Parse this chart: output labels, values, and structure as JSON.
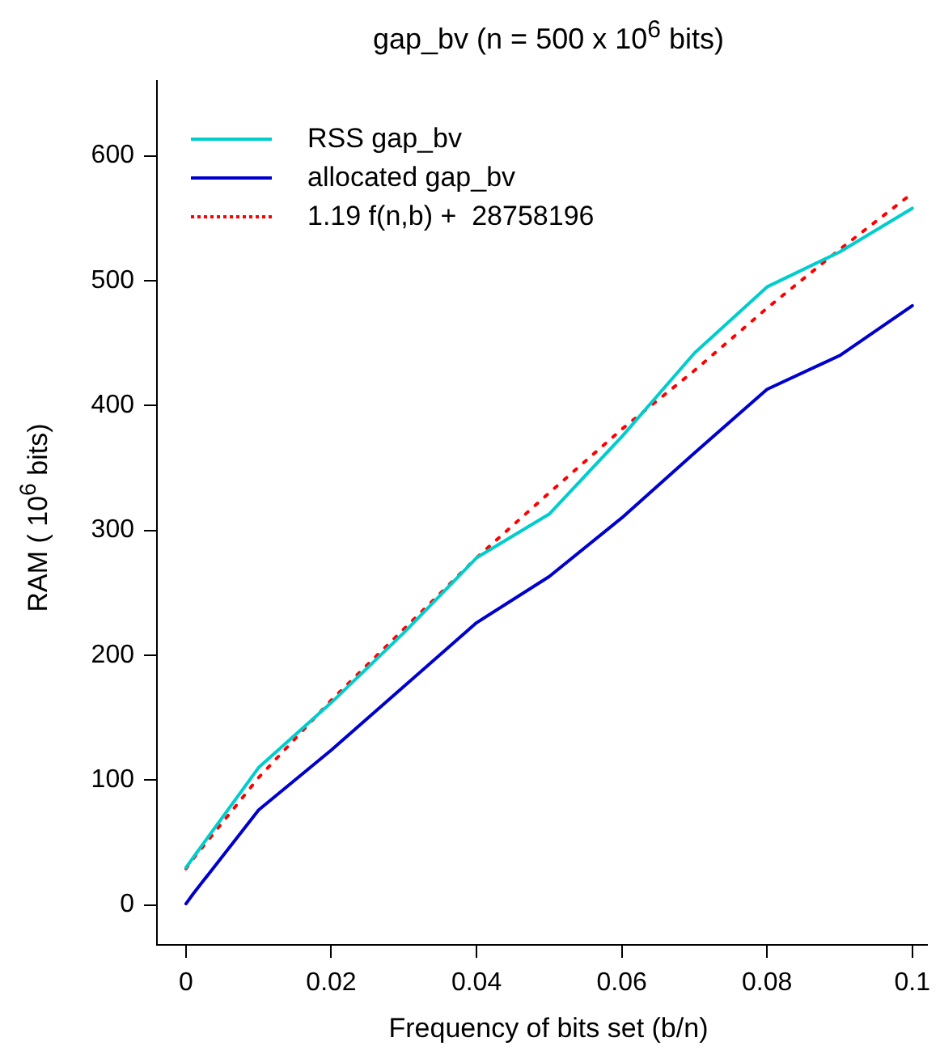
{
  "chart_data": {
    "type": "line",
    "title": "gap_bv (n = 500 x 10$^{6}$ bits)",
    "xlabel": "Frequency of bits set (b/n)",
    "ylabel": "RAM ( 10$^{6}$ bits)",
    "x": [
      0,
      0.001,
      0.01,
      0.02,
      0.03,
      0.04,
      0.05,
      0.06,
      0.07,
      0.08,
      0.09,
      0.1
    ],
    "series": [
      {
        "name": "RSS gap_bv",
        "color": "#00cdcd",
        "line_style": "solid",
        "values": [
          30,
          38,
          110,
          162,
          218,
          278,
          313,
          375,
          442,
          495,
          523,
          558
        ]
      },
      {
        "name": "allocated gap_bv",
        "color": "#0000cd",
        "line_style": "solid",
        "values": [
          1,
          9,
          76,
          124,
          175,
          226,
          263,
          310,
          362,
          413,
          440,
          480
        ]
      },
      {
        "name": "1.19 f(n,b) +  28758196",
        "color": "#ff0000",
        "line_style": "dotted",
        "values": [
          29,
          37,
          102,
          164,
          221,
          278,
          330,
          381,
          428,
          478,
          525,
          570
        ]
      }
    ],
    "xlim": [
      -0.004,
      0.102
    ],
    "xticks": [
      {
        "value": 0,
        "label": "0"
      },
      0.02,
      0.04,
      0.06,
      0.08,
      {
        "value": 0.1,
        "label": "0.1"
      }
    ],
    "ylim": [
      -32,
      660
    ],
    "yticks": [
      0,
      100,
      200,
      300,
      400,
      500,
      600
    ],
    "grid": false,
    "legend": "top left",
    "marker": "none"
  }
}
